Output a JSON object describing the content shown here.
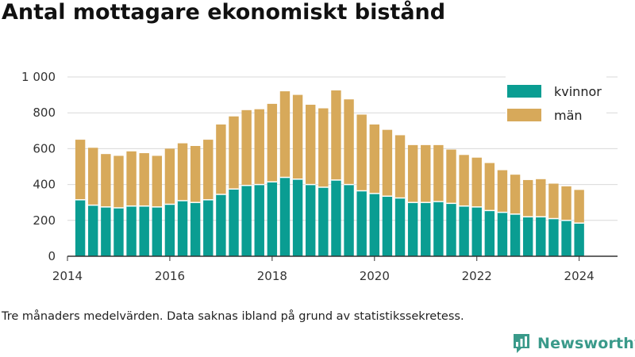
{
  "title": "Antal mottagare ekonomiskt bistånd",
  "footnote": "Tre månaders medelvärden. Data saknas ibland på grund av statistikssekretess.",
  "brand": {
    "name": "Newsworthy",
    "icon": "newsworthy-logo-icon",
    "color": "#3a9a8a"
  },
  "colors": {
    "kvinnor": "#0a9d92",
    "man": "#d7a95a",
    "grid": "#d9d9d9",
    "axis": "#333333"
  },
  "chart_data": {
    "type": "bar",
    "stacked": true,
    "title": "Antal mottagare ekonomiskt bistånd",
    "xlabel": "",
    "ylabel": "",
    "ylim": [
      0,
      1000
    ],
    "yticks": [
      0,
      200,
      400,
      600,
      800,
      1000
    ],
    "ytick_labels": [
      "0",
      "200",
      "400",
      "600",
      "800",
      "1 000"
    ],
    "xlim": [
      2014.0,
      2024.75
    ],
    "xticks": [
      "2014",
      "2016",
      "2018",
      "2020",
      "2022",
      "2024"
    ],
    "grid": true,
    "legend": "top-right",
    "x": [
      2014.25,
      2014.5,
      2014.75,
      2015.0,
      2015.25,
      2015.5,
      2015.75,
      2016.0,
      2016.25,
      2016.5,
      2016.75,
      2017.0,
      2017.25,
      2017.5,
      2017.75,
      2018.0,
      2018.25,
      2018.5,
      2018.75,
      2019.0,
      2019.25,
      2019.5,
      2019.75,
      2020.0,
      2020.25,
      2020.5,
      2020.75,
      2021.0,
      2021.25,
      2021.5,
      2021.75,
      2022.0,
      2022.25,
      2022.5,
      2022.75,
      2023.0,
      2023.25,
      2023.5,
      2023.75,
      2024.0
    ],
    "series": [
      {
        "name": "kvinnor",
        "values": [
          315,
          285,
          275,
          270,
          280,
          280,
          275,
          290,
          310,
          300,
          315,
          345,
          375,
          395,
          400,
          415,
          440,
          430,
          400,
          385,
          425,
          400,
          365,
          350,
          335,
          325,
          300,
          300,
          305,
          295,
          280,
          275,
          255,
          245,
          235,
          220,
          220,
          210,
          200,
          185
        ]
      },
      {
        "name": "män",
        "values": [
          335,
          320,
          295,
          290,
          305,
          295,
          285,
          310,
          320,
          315,
          335,
          390,
          405,
          420,
          420,
          435,
          480,
          470,
          445,
          440,
          500,
          475,
          425,
          385,
          370,
          350,
          320,
          320,
          315,
          300,
          285,
          275,
          265,
          235,
          220,
          205,
          210,
          195,
          190,
          185
        ]
      }
    ]
  }
}
